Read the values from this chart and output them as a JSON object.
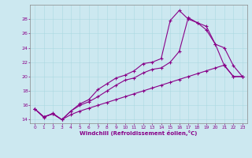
{
  "bg_color": "#cce8f0",
  "line_color": "#880088",
  "xlim": [
    -0.5,
    23.5
  ],
  "ylim": [
    13.5,
    30.0
  ],
  "yticks": [
    14,
    16,
    18,
    20,
    22,
    24,
    26,
    28
  ],
  "xticks": [
    0,
    1,
    2,
    3,
    4,
    5,
    6,
    7,
    8,
    9,
    10,
    11,
    12,
    13,
    14,
    15,
    16,
    17,
    18,
    19,
    20,
    21,
    22,
    23
  ],
  "xlabel": "Windchill (Refroidissement éolien,°C)",
  "line1_x": [
    0,
    1,
    2,
    3,
    4,
    5,
    6,
    7,
    8,
    9,
    10,
    11,
    12,
    13,
    14,
    15,
    16,
    17,
    18,
    19,
    20,
    21,
    22,
    23
  ],
  "line1_y": [
    15.5,
    14.4,
    14.8,
    14.0,
    15.2,
    16.0,
    16.5,
    17.2,
    18.0,
    18.8,
    19.5,
    19.8,
    20.5,
    21.0,
    21.2,
    22.0,
    23.5,
    28.2,
    27.5,
    27.0,
    24.5,
    21.5,
    20.0,
    20.0
  ],
  "line2_x": [
    0,
    1,
    2,
    3,
    4,
    5,
    6,
    7,
    8,
    9,
    10,
    11,
    12,
    13,
    14,
    15,
    16,
    17,
    18,
    19,
    20,
    21,
    22,
    23
  ],
  "line2_y": [
    15.5,
    14.4,
    14.8,
    14.0,
    15.2,
    16.2,
    16.8,
    18.2,
    19.0,
    19.8,
    20.2,
    20.8,
    21.8,
    22.0,
    22.5,
    27.8,
    29.2,
    28.0,
    27.5,
    26.5,
    24.5,
    24.0,
    21.5,
    20.0
  ],
  "line3_x": [
    0,
    1,
    2,
    3,
    4,
    5,
    6,
    7,
    8,
    9,
    10,
    11,
    12,
    13,
    14,
    15,
    16,
    17,
    18,
    19,
    20,
    21,
    22,
    23
  ],
  "line3_y": [
    15.5,
    14.3,
    14.9,
    14.0,
    14.7,
    15.2,
    15.6,
    16.0,
    16.4,
    16.8,
    17.2,
    17.6,
    18.0,
    18.4,
    18.8,
    19.2,
    19.6,
    20.0,
    20.4,
    20.8,
    21.2,
    21.6,
    20.0,
    20.0
  ]
}
